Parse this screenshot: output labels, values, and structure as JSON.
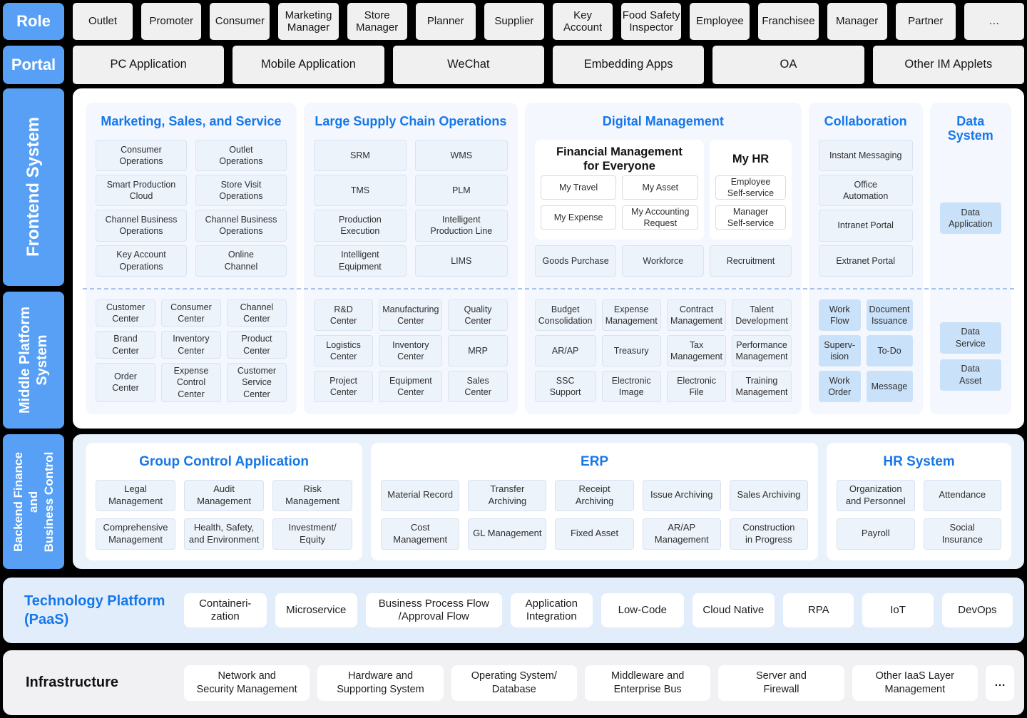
{
  "colors": {
    "accent_blue": "#1677E8",
    "side_label_blue": "#57A0F5",
    "highlight_chip_blue": "#C9E1F9",
    "chip_bg": "#EDF3FB",
    "page_bg": "#000000"
  },
  "role_row": {
    "label": "Role",
    "items": [
      "Outlet",
      "Promoter",
      "Consumer",
      "Marketing\nManager",
      "Store\nManager",
      "Planner",
      "Supplier",
      "Key\nAccount",
      "Food Safety\nInspector",
      "Employee",
      "Franchisee",
      "Manager",
      "Partner",
      "…"
    ]
  },
  "portal_row": {
    "label": "Portal",
    "items": [
      "PC Application",
      "Mobile Application",
      "WeChat",
      "Embedding Apps",
      "OA",
      "Other IM Applets"
    ]
  },
  "platform": {
    "frontend_label": "Frontend System",
    "middle_label": "Middle Platform\nSystem",
    "marketing": {
      "title": "Marketing, Sales, and Service",
      "front": [
        "Consumer\nOperations",
        "Outlet\nOperations",
        "Smart Production\nCloud",
        "Store Visit\nOperations",
        "Channel Business\nOperations",
        "Channel Business\nOperations",
        "Key Account\nOperations",
        "Online\nChannel"
      ],
      "middle": [
        "Customer\nCenter",
        "Consumer\nCenter",
        "Channel\nCenter",
        "Brand\nCenter",
        "Inventory\nCenter",
        "Product\nCenter",
        "Order\nCenter",
        "Expense Control\nCenter",
        "Customer\nService Center"
      ]
    },
    "supply": {
      "title": "Large Supply Chain Operations",
      "front": [
        "SRM",
        "WMS",
        "TMS",
        "PLM",
        "Production\nExecution",
        "Intelligent\nProduction Line",
        "Intelligent\nEquipment",
        "LIMS"
      ],
      "middle": [
        "R&D\nCenter",
        "Manufacturing\nCenter",
        "Quality\nCenter",
        "Logistics\nCenter",
        "Inventory\nCenter",
        "MRP",
        "Project\nCenter",
        "Equipment\nCenter",
        "Sales\nCenter"
      ]
    },
    "digital": {
      "title": "Digital Management",
      "financial": {
        "title": "Financial Management\nfor Everyone",
        "items": [
          "My Travel",
          "My Asset",
          "My Expense",
          "My Accounting\nRequest"
        ]
      },
      "myhr": {
        "title": "My HR",
        "items": [
          "Employee\nSelf-service",
          "Manager\nSelf-service"
        ]
      },
      "front_row": [
        "Goods Purchase",
        "Workforce",
        "Recruitment"
      ],
      "middle": [
        "Budget\nConsolidation",
        "Expense\nManagement",
        "Contract\nManagement",
        "Talent\nDevelopment",
        "AR/AP",
        "Treasury",
        "Tax\nManagement",
        "Performance\nManagement",
        "SSC\nSupport",
        "Electronic\nImage",
        "Electronic\nFile",
        "Training\nManagement"
      ]
    },
    "collaboration": {
      "title": "Collaboration",
      "front": [
        "Instant Messaging",
        "Office\nAutomation",
        "Intranet Portal",
        "Extranet Portal"
      ],
      "middle": [
        "Work\nFlow",
        "Document\nIssuance",
        "Superv-\nision",
        "To-Do",
        "Work\nOrder",
        "Message"
      ]
    },
    "data_system": {
      "title": "Data\nSystem",
      "front": [
        "Data\nApplication"
      ],
      "middle": [
        "Data\nService",
        "Data\nAsset"
      ]
    }
  },
  "backend": {
    "side_label": "Backend Finance\nand\nBusiness Control",
    "group_control": {
      "title": "Group Control Application",
      "items": [
        "Legal\nManagement",
        "Audit\nManagement",
        "Risk\nManagement",
        "Comprehensive\nManagement",
        "Health, Safety,\nand Environment",
        "Investment/\nEquity"
      ]
    },
    "erp": {
      "title": "ERP",
      "items": [
        "Material Record",
        "Transfer Archiving",
        "Receipt Archiving",
        "Issue Archiving",
        "Sales Archiving",
        "Cost\nManagement",
        "GL Management",
        "Fixed Asset",
        "AR/AP\nManagement",
        "Construction\nin Progress"
      ]
    },
    "hr": {
      "title": "HR System",
      "items": [
        "Organization\nand Personnel",
        "Attendance",
        "Payroll",
        "Social\nInsurance"
      ]
    }
  },
  "paas": {
    "title": "Technology Platform\n (PaaS)",
    "items": [
      "Containeri-\nzation",
      "Microservice",
      "Business Process Flow\n/Approval Flow",
      "Application\nIntegration",
      "Low-Code",
      "Cloud Native",
      "RPA",
      "IoT",
      "DevOps"
    ]
  },
  "infrastructure": {
    "title": "Infrastructure",
    "items": [
      "Network and\nSecurity Management",
      "Hardware and\nSupporting System",
      "Operating System/\nDatabase",
      "Middleware and\nEnterprise Bus",
      "Server and\nFirewall",
      "Other IaaS Layer\nManagement"
    ],
    "more": "…"
  }
}
